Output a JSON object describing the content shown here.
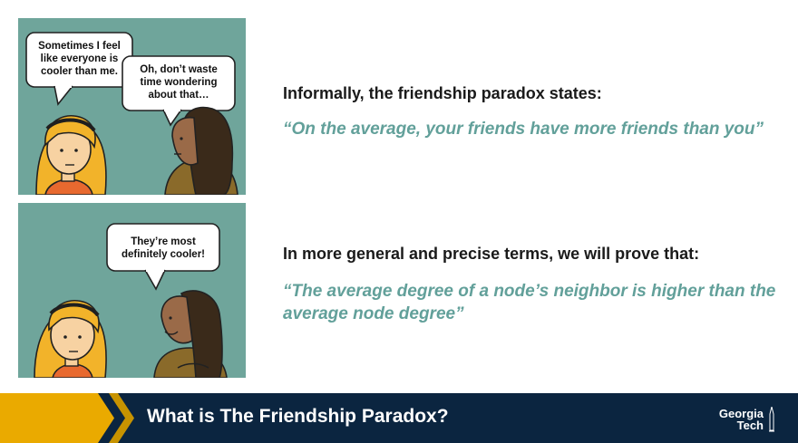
{
  "comic": {
    "top_left_bubble": [
      "Sometimes I feel",
      "like everyone is",
      "cooler than me."
    ],
    "top_right_bubble": [
      "Oh, don’t waste",
      "time wondering",
      "about that…"
    ],
    "bottom_bubble": [
      "They’re most",
      "definitely cooler!"
    ]
  },
  "main": {
    "heading_1": "Informally, the friendship paradox states:",
    "quote_1": "“On the average, your friends have more friends than you”",
    "heading_2": "In more general and precise terms, we will prove that:",
    "quote_2": "“The average degree of a node’s neighbor is higher than the average node degree”"
  },
  "footer": {
    "title": "What is The Friendship Paradox?",
    "logo_line_1": "Georgia",
    "logo_line_2": "Tech"
  },
  "colors": {
    "panel": "#6fa59b",
    "quote": "#62a09a",
    "footer_navy": "#0b2540",
    "footer_gold": "#eaaa00"
  }
}
